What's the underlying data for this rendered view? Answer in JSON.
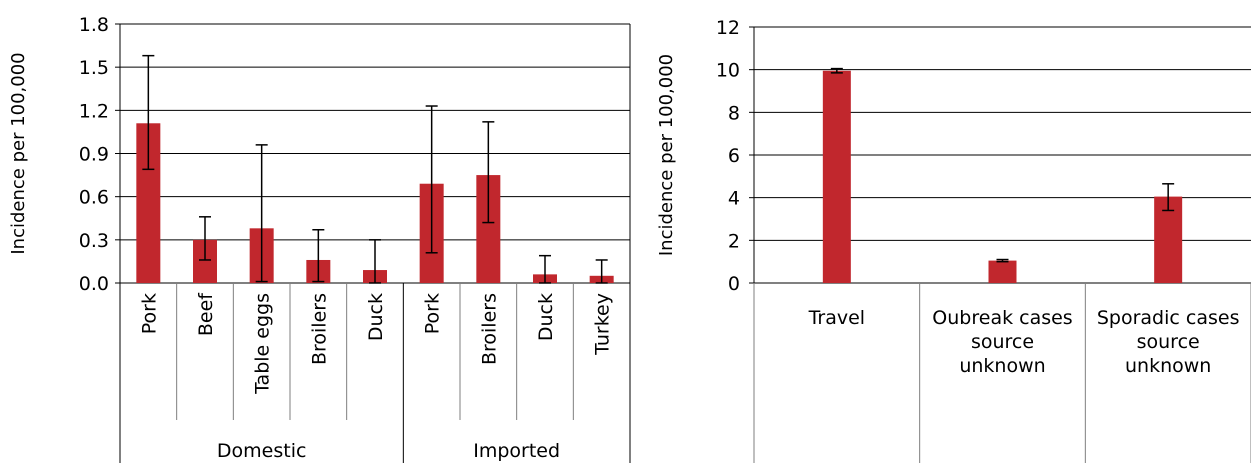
{
  "colors": {
    "bar": "#C1272D",
    "axis": "#000000",
    "grid": "#000000",
    "divider": "#7f7f7f"
  },
  "chart_data": [
    {
      "type": "bar",
      "ylabel": "Incidence per 100,000",
      "ylim": [
        0,
        1.8
      ],
      "yticks": [
        "0.0",
        "0.3",
        "0.6",
        "0.9",
        "1.2",
        "1.5",
        "1.8"
      ],
      "grid": true,
      "categories": [
        "Pork",
        "Beef",
        "Table eggs",
        "Broilers",
        "Duck",
        "Pork",
        "Broilers",
        "Duck",
        "Turkey"
      ],
      "groups": [
        {
          "label": "Domestic",
          "start": 0,
          "count": 5
        },
        {
          "label": "Imported",
          "start": 5,
          "count": 4
        }
      ],
      "values": [
        1.11,
        0.3,
        0.38,
        0.16,
        0.09,
        0.69,
        0.75,
        0.06,
        0.05
      ],
      "error_low": [
        0.79,
        0.16,
        0.01,
        0.01,
        0.0,
        0.21,
        0.42,
        0.0,
        0.0
      ],
      "error_high": [
        1.58,
        0.46,
        0.96,
        0.37,
        0.3,
        1.23,
        1.12,
        0.19,
        0.16
      ]
    },
    {
      "type": "bar",
      "ylabel": "Incidence per 100,000",
      "ylim": [
        0,
        12
      ],
      "yticks": [
        "0",
        "2",
        "4",
        "6",
        "8",
        "10",
        "12"
      ],
      "grid": true,
      "categories": [
        [
          "Travel"
        ],
        [
          "Oubreak cases",
          "source",
          "unknown"
        ],
        [
          "Sporadic cases",
          "source",
          "unknown"
        ]
      ],
      "values": [
        9.95,
        1.05,
        4.05
      ],
      "error_low": [
        9.85,
        1.0,
        3.4
      ],
      "error_high": [
        10.05,
        1.1,
        4.65
      ]
    }
  ]
}
